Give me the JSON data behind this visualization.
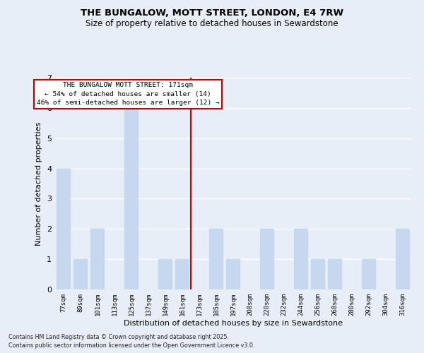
{
  "title": "THE BUNGALOW, MOTT STREET, LONDON, E4 7RW",
  "subtitle": "Size of property relative to detached houses in Sewardstone",
  "xlabel": "Distribution of detached houses by size in Sewardstone",
  "ylabel": "Number of detached properties",
  "categories": [
    "77sqm",
    "89sqm",
    "101sqm",
    "113sqm",
    "125sqm",
    "137sqm",
    "149sqm",
    "161sqm",
    "173sqm",
    "185sqm",
    "197sqm",
    "208sqm",
    "220sqm",
    "232sqm",
    "244sqm",
    "256sqm",
    "268sqm",
    "280sqm",
    "292sqm",
    "304sqm",
    "316sqm"
  ],
  "values": [
    4,
    1,
    2,
    0,
    6,
    0,
    1,
    1,
    0,
    2,
    1,
    0,
    2,
    0,
    2,
    1,
    1,
    0,
    1,
    0,
    2
  ],
  "bar_color": "#c5d8ed",
  "bar_edgecolor": "#c5d8ed",
  "subject_idx": 8,
  "subject_line_label": "THE BUNGALOW MOTT STREET: 171sqm",
  "pct_smaller": "54% of detached houses are smaller (14)",
  "pct_larger": "46% of semi-detached houses are larger (12)",
  "annotation_box_color": "#cc0000",
  "vline_color": "#cc0000",
  "ylim": [
    0,
    7
  ],
  "yticks": [
    0,
    1,
    2,
    3,
    4,
    5,
    6,
    7
  ],
  "background_color": "#e8eef8",
  "grid_color": "#ffffff",
  "footer_line1": "Contains HM Land Registry data © Crown copyright and database right 2025.",
  "footer_line2": "Contains public sector information licensed under the Open Government Licence v3.0."
}
